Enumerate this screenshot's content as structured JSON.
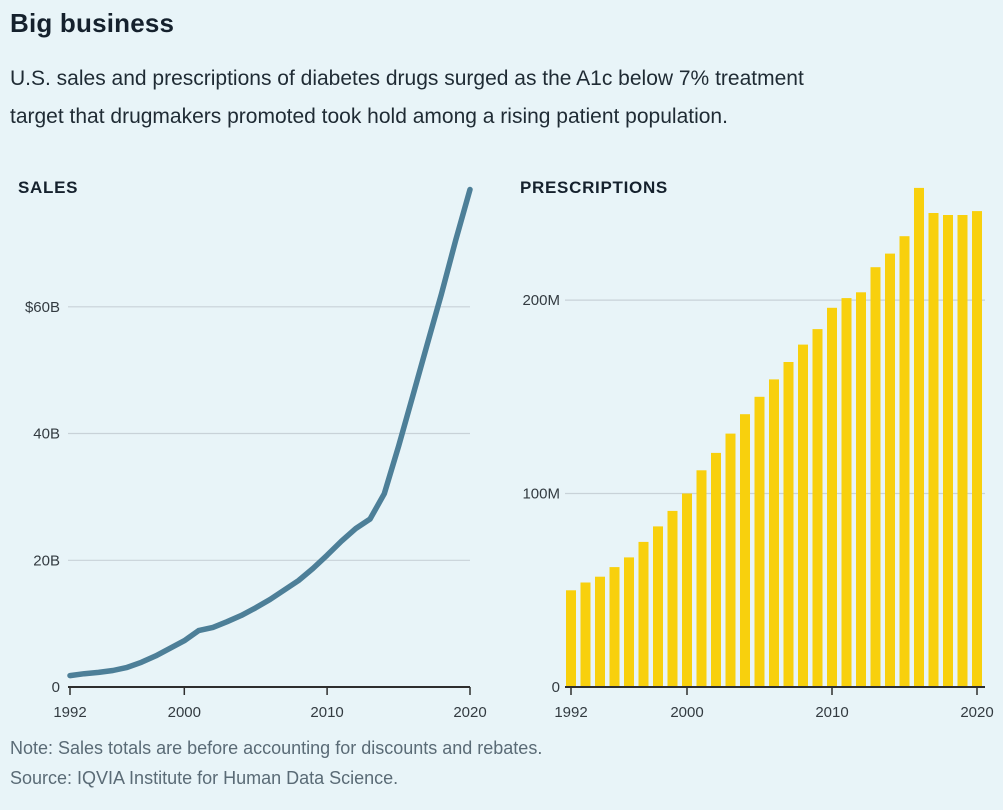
{
  "page": {
    "title": "Big business",
    "subtitle_lines": [
      "U.S. sales and prescriptions of diabetes drugs surged as the A1c below 7% treatment",
      "target that drugmakers promoted took hold among a rising patient population."
    ],
    "note": "Note: Sales totals are before accounting for discounts and rebates.",
    "source": "Source: IQVIA Institute for Human Data Science."
  },
  "colors": {
    "background": "#e8f4f8",
    "title_text": "#15212d",
    "body_text": "#1f2b34",
    "muted_text": "#5a6b76",
    "line_series": "#4d7f98",
    "bar_series": "#f8d00d",
    "gridline": "#c8d2d8",
    "axis": "#2e2e2e"
  },
  "chart_data": [
    {
      "type": "line",
      "title": "SALES",
      "x": [
        1992,
        1993,
        1994,
        1995,
        1996,
        1997,
        1998,
        1999,
        2000,
        2001,
        2002,
        2003,
        2004,
        2005,
        2006,
        2007,
        2008,
        2009,
        2010,
        2011,
        2012,
        2013,
        2014,
        2015,
        2016,
        2017,
        2018,
        2019,
        2020
      ],
      "values": [
        1.8,
        2.1,
        2.3,
        2.6,
        3.1,
        3.9,
        4.9,
        6.1,
        7.3,
        8.9,
        9.4,
        10.3,
        11.3,
        12.5,
        13.8,
        15.3,
        16.8,
        18.7,
        20.8,
        23.0,
        25.0,
        26.5,
        30.5,
        38.0,
        46.0,
        54.0,
        62.0,
        70.5,
        78.5
      ],
      "ylim": [
        0,
        80
      ],
      "yticks": [
        {
          "value": 60,
          "label": "$60B"
        },
        {
          "value": 40,
          "label": "40B"
        },
        {
          "value": 20,
          "label": "20B"
        },
        {
          "value": 0,
          "label": "0"
        }
      ],
      "xticks": [
        1992,
        2000,
        2010,
        2020
      ],
      "grid": true,
      "legend": "none"
    },
    {
      "type": "bar",
      "title": "PRESCRIPTIONS",
      "x": [
        1992,
        1993,
        1994,
        1995,
        1996,
        1997,
        1998,
        1999,
        2000,
        2001,
        2002,
        2003,
        2004,
        2005,
        2006,
        2007,
        2008,
        2009,
        2010,
        2011,
        2012,
        2013,
        2014,
        2015,
        2016,
        2017,
        2018,
        2019,
        2020
      ],
      "values": [
        50,
        54,
        57,
        62,
        67,
        75,
        83,
        91,
        100,
        112,
        121,
        131,
        141,
        150,
        159,
        168,
        177,
        185,
        196,
        201,
        204,
        217,
        224,
        233,
        258,
        245,
        244,
        244,
        246
      ],
      "ylim": [
        0,
        260
      ],
      "yticks": [
        {
          "value": 200,
          "label": "200M"
        },
        {
          "value": 100,
          "label": "100M"
        },
        {
          "value": 0,
          "label": "0"
        }
      ],
      "xticks": [
        1992,
        2000,
        2010,
        2020
      ],
      "grid": true,
      "legend": "none"
    }
  ]
}
